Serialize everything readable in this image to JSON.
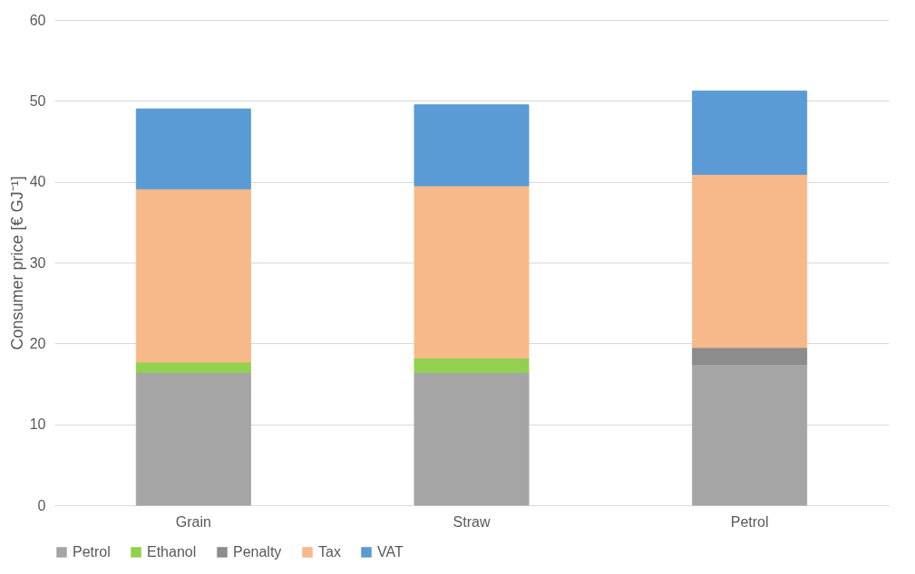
{
  "chart_data": {
    "type": "bar",
    "stacked": true,
    "ylabel": "Consumer price [€ GJ⁻¹]",
    "categories": [
      "Grain",
      "Straw",
      "Petrol"
    ],
    "series": [
      {
        "name": "Petrol",
        "color": "#a5a5a5",
        "values": [
          16.4,
          16.4,
          17.4
        ]
      },
      {
        "name": "Ethanol",
        "color": "#92d050",
        "values": [
          1.3,
          1.8,
          null
        ]
      },
      {
        "name": "Penalty",
        "color": "#8c8c8c",
        "values": [
          null,
          null,
          2.1
        ]
      },
      {
        "name": "Tax",
        "color": "#f8b98a",
        "values": [
          21.4,
          21.3,
          21.4
        ]
      },
      {
        "name": "VAT",
        "color": "#5b9bd5",
        "values": [
          9.9,
          10.0,
          10.3
        ]
      }
    ],
    "ylim": [
      0,
      60
    ],
    "yticks": [
      0,
      10,
      20,
      30,
      40,
      50,
      60
    ],
    "grid": "y",
    "legend": "bottom"
  }
}
